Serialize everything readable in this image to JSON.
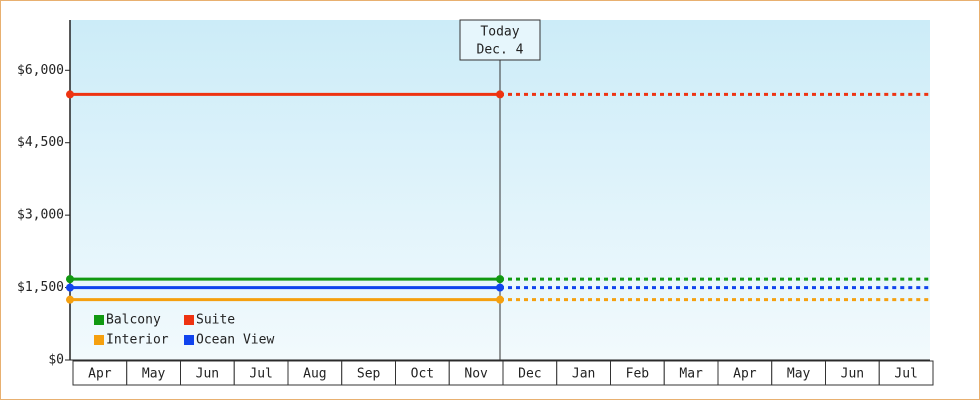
{
  "chart_data": {
    "type": "line",
    "categories": [
      "Apr",
      "May",
      "Jun",
      "Jul",
      "Aug",
      "Sep",
      "Oct",
      "Nov",
      "Dec",
      "Jan",
      "Feb",
      "Mar",
      "Apr",
      "May",
      "Jun",
      "Jul"
    ],
    "series": [
      {
        "name": "Balcony",
        "color": "#119911",
        "values": [
          1675,
          1675,
          1675,
          1675,
          1675,
          1675,
          1675,
          1675,
          1675,
          1675,
          1675,
          1675,
          1675,
          1675,
          1675,
          1675
        ]
      },
      {
        "name": "Suite",
        "color": "#ee3311",
        "values": [
          5500,
          5500,
          5500,
          5500,
          5500,
          5500,
          5500,
          5500,
          5500,
          5500,
          5500,
          5500,
          5500,
          5500,
          5500,
          5500
        ]
      },
      {
        "name": "Interior",
        "color": "#f5a00f",
        "values": [
          1250,
          1250,
          1250,
          1250,
          1250,
          1250,
          1250,
          1250,
          1250,
          1250,
          1250,
          1250,
          1250,
          1250,
          1250,
          1250
        ]
      },
      {
        "name": "Ocean View",
        "color": "#1144ee",
        "values": [
          1500,
          1500,
          1500,
          1500,
          1500,
          1500,
          1500,
          1500,
          1500,
          1500,
          1500,
          1500,
          1500,
          1500,
          1500,
          1500
        ]
      }
    ],
    "today": {
      "label": "Today",
      "date": "Dec. 4",
      "category": "Dec"
    },
    "ylim": [
      0,
      7000
    ],
    "yticks": [
      {
        "value": 0,
        "label": "$0"
      },
      {
        "value": 1500,
        "label": "$1,500"
      },
      {
        "value": 3000,
        "label": "$3,000"
      },
      {
        "value": 4500,
        "label": "$4,500"
      },
      {
        "value": 6000,
        "label": "$6,000"
      }
    ],
    "legend": "bottom-left"
  }
}
